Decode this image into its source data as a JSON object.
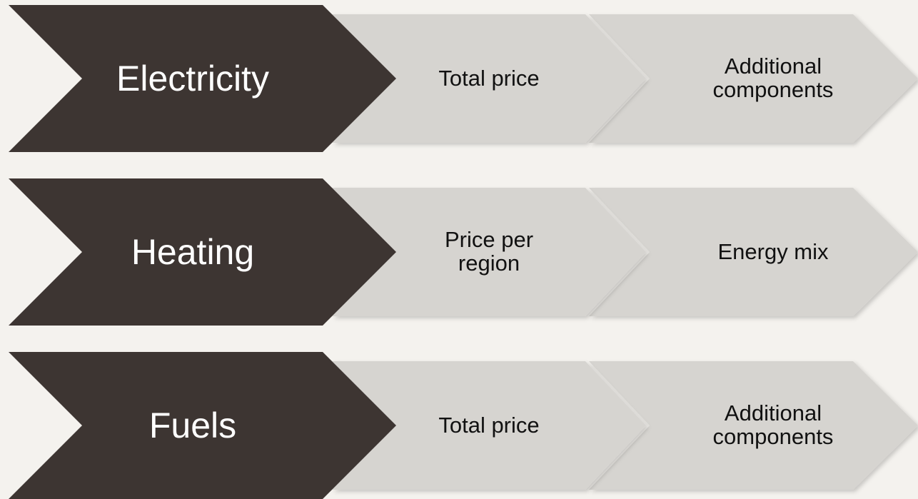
{
  "rows": [
    {
      "label": "Electricity",
      "steps": [
        "Total price",
        "Additional components"
      ]
    },
    {
      "label": "Heating",
      "steps": [
        "Price per region",
        "Energy mix"
      ]
    },
    {
      "label": "Fuels",
      "steps": [
        "Total price",
        "Additional components"
      ]
    }
  ]
}
